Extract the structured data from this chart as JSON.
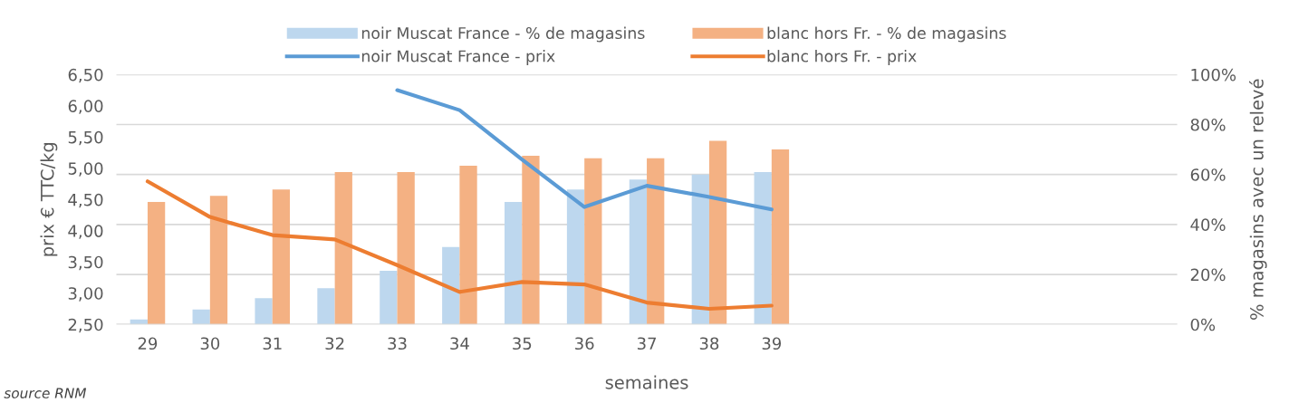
{
  "chart_data": {
    "type": "bar",
    "categories": [
      "29",
      "30",
      "31",
      "32",
      "33",
      "34",
      "35",
      "36",
      "37",
      "38",
      "39",
      null,
      null,
      null,
      null,
      null,
      null
    ],
    "series": [
      {
        "name": "noir Muscat France - % de magasins",
        "axis": "y2",
        "color": "#bdd7ee",
        "values": [
          2,
          6,
          10.5,
          14.5,
          21.5,
          31,
          49,
          54,
          58,
          60,
          61,
          null,
          null,
          null,
          null,
          null,
          null
        ]
      },
      {
        "name": "blanc hors Fr. - % de magasins",
        "axis": "y2",
        "color": "#f4b183",
        "values": [
          49,
          51.5,
          54,
          61,
          61,
          63.5,
          67.5,
          66.5,
          66.5,
          73.5,
          70,
          null,
          null,
          null,
          null,
          null,
          null
        ]
      },
      {
        "name": "noir Muscat France - prix",
        "type": "line",
        "axis": "y",
        "color": "#5b9bd5",
        "values": [
          null,
          null,
          null,
          null,
          6.25,
          5.93,
          5.14,
          4.38,
          4.72,
          4.54,
          4.34,
          null,
          null,
          null,
          null,
          null,
          null
        ]
      },
      {
        "name": "blanc hors Fr. - prix",
        "type": "line",
        "axis": "y",
        "color": "#ed7d31",
        "values": [
          4.79,
          4.22,
          3.93,
          3.86,
          3.45,
          3.02,
          3.18,
          3.14,
          2.85,
          2.75,
          2.8,
          null,
          null,
          null,
          null,
          null,
          null
        ]
      }
    ],
    "xlabel": "semaines",
    "ylabel": "prix € TTC/kg",
    "y2label": "% magasins avec un relevé",
    "ylim": [
      2.5,
      6.5
    ],
    "yticks": [
      {
        "value": 2.5,
        "label": "2,50"
      },
      {
        "value": 3.0,
        "label": "3,00"
      },
      {
        "value": 3.5,
        "label": "3,50"
      },
      {
        "value": 4.0,
        "label": "4,00"
      },
      {
        "value": 4.5,
        "label": "4,50"
      },
      {
        "value": 5.0,
        "label": "5,00"
      },
      {
        "value": 5.5,
        "label": "5,50"
      },
      {
        "value": 6.0,
        "label": "6,00"
      },
      {
        "value": 6.5,
        "label": "6,50"
      }
    ],
    "y2lim": [
      0,
      100
    ],
    "y2ticks": [
      {
        "value": 0,
        "label": "0%"
      },
      {
        "value": 20,
        "label": "20%"
      },
      {
        "value": 40,
        "label": "40%"
      },
      {
        "value": 60,
        "label": "60%"
      },
      {
        "value": 80,
        "label": "80%"
      },
      {
        "value": 100,
        "label": "100%"
      }
    ],
    "grid": "y",
    "legend": "top",
    "annotations": [
      "source RNM"
    ]
  }
}
